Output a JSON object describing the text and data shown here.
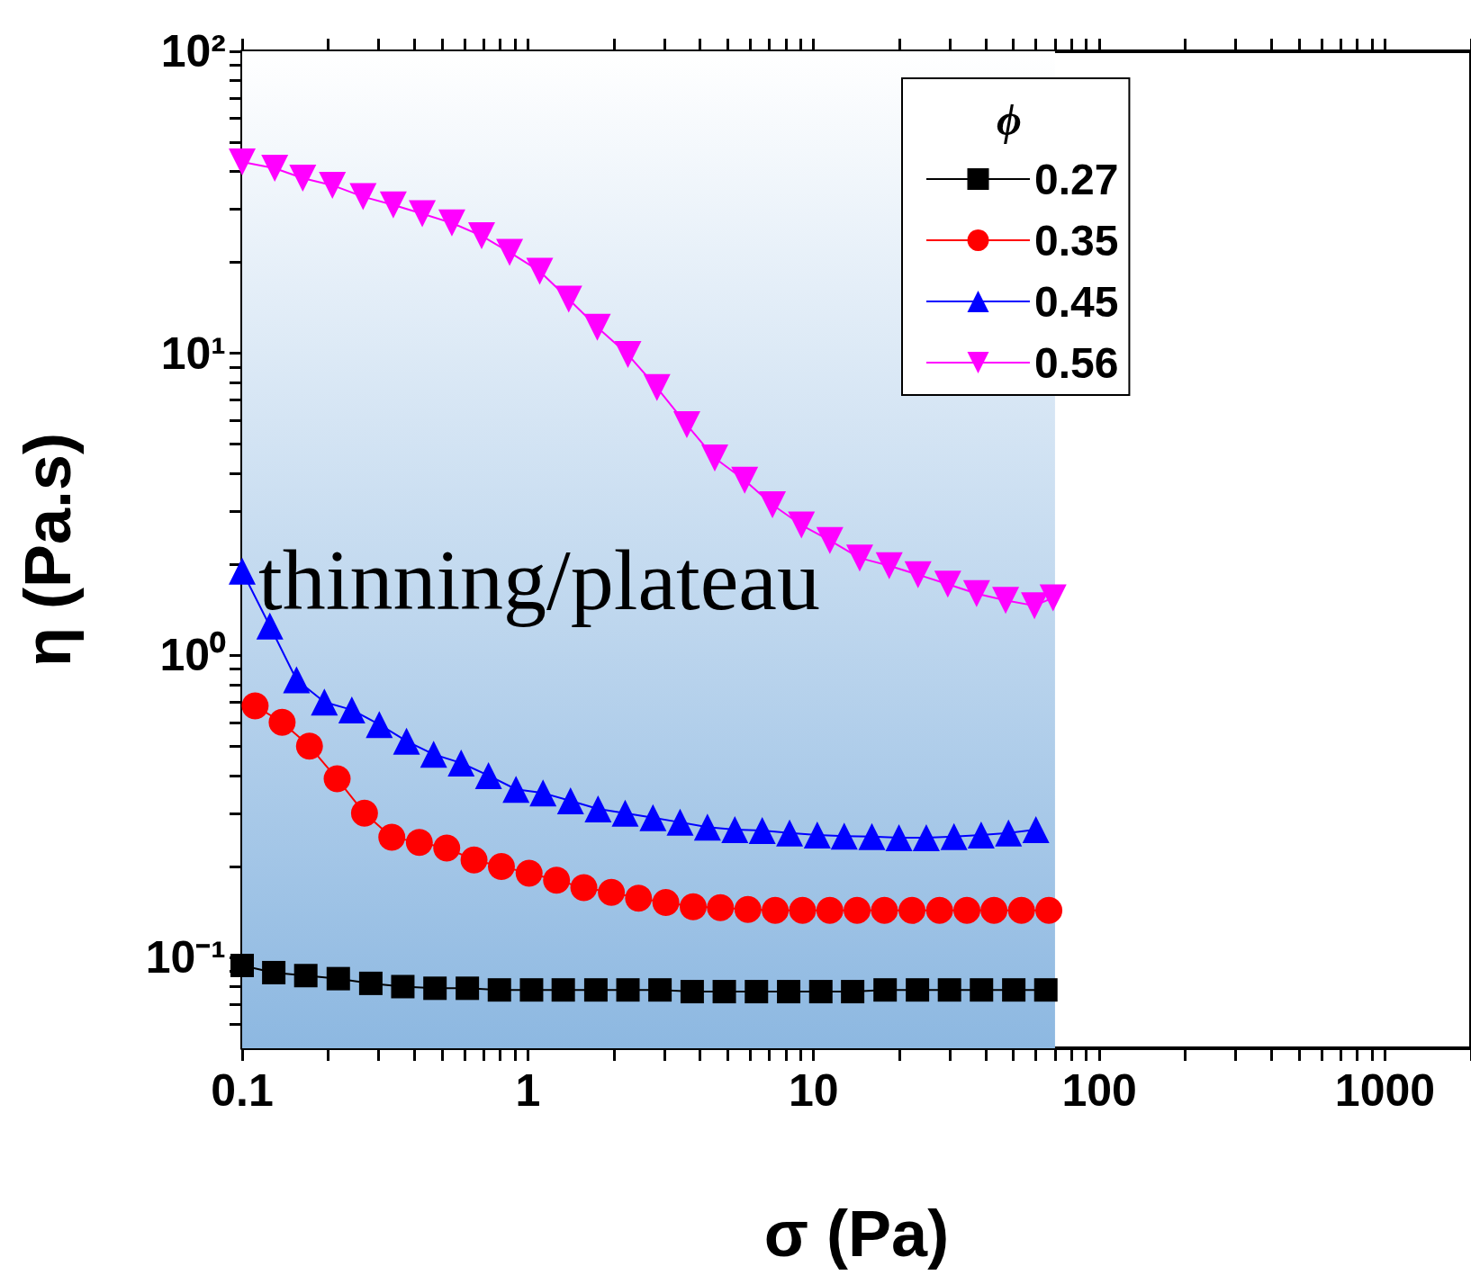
{
  "chart_data": {
    "type": "line",
    "xlabel": "σ (Pa)",
    "ylabel": "η (Pa.s)",
    "legend_title": "ϕ",
    "legend": "top right",
    "log": "xy",
    "grid": false,
    "line_style": "solid",
    "xlim": [
      0.1,
      2000
    ],
    "ylim": [
      0.05,
      100
    ],
    "xticks": [
      0.1,
      {
        "value": 0.2,
        "label": null
      },
      {
        "value": 0.3,
        "label": null
      },
      {
        "value": 0.4,
        "label": null
      },
      {
        "value": 0.5,
        "label": null
      },
      {
        "value": 0.6,
        "label": null
      },
      {
        "value": 0.7,
        "label": null
      },
      {
        "value": 0.8,
        "label": null
      },
      {
        "value": 0.9,
        "label": null
      },
      1,
      {
        "value": 2,
        "label": null
      },
      {
        "value": 3,
        "label": null
      },
      {
        "value": 4,
        "label": null
      },
      {
        "value": 5,
        "label": null
      },
      {
        "value": 6,
        "label": null
      },
      {
        "value": 7,
        "label": null
      },
      {
        "value": 8,
        "label": null
      },
      {
        "value": 9,
        "label": null
      },
      10,
      {
        "value": 20,
        "label": null
      },
      {
        "value": 30,
        "label": null
      },
      {
        "value": 40,
        "label": null
      },
      {
        "value": 50,
        "label": null
      },
      {
        "value": 60,
        "label": null
      },
      {
        "value": 70,
        "label": null
      },
      {
        "value": 80,
        "label": null
      },
      {
        "value": 90,
        "label": null
      },
      100,
      {
        "value": 200,
        "label": null
      },
      {
        "value": 300,
        "label": null
      },
      {
        "value": 400,
        "label": null
      },
      {
        "value": 500,
        "label": null
      },
      {
        "value": 600,
        "label": null
      },
      {
        "value": 700,
        "label": null
      },
      {
        "value": 800,
        "label": null
      },
      {
        "value": 900,
        "label": null
      },
      1000,
      {
        "value": 2000,
        "label": null
      }
    ],
    "yticks": [
      {
        "value": 0.06,
        "label": null
      },
      {
        "value": 0.07,
        "label": null
      },
      {
        "value": 0.08,
        "label": null
      },
      {
        "value": 0.09,
        "label": null
      },
      {
        "value": 0.1,
        "label": "10⁻¹"
      },
      {
        "value": 0.2,
        "label": null
      },
      {
        "value": 0.3,
        "label": null
      },
      {
        "value": 0.4,
        "label": null
      },
      {
        "value": 0.5,
        "label": null
      },
      {
        "value": 0.6,
        "label": null
      },
      {
        "value": 0.7,
        "label": null
      },
      {
        "value": 0.8,
        "label": null
      },
      {
        "value": 0.9,
        "label": null
      },
      {
        "value": 1,
        "label": "10⁰"
      },
      {
        "value": 2,
        "label": null
      },
      {
        "value": 3,
        "label": null
      },
      {
        "value": 4,
        "label": null
      },
      {
        "value": 5,
        "label": null
      },
      {
        "value": 6,
        "label": null
      },
      {
        "value": 7,
        "label": null
      },
      {
        "value": 8,
        "label": null
      },
      {
        "value": 9,
        "label": null
      },
      {
        "value": 10,
        "label": "10¹"
      },
      {
        "value": 20,
        "label": null
      },
      {
        "value": 30,
        "label": null
      },
      {
        "value": 40,
        "label": null
      },
      {
        "value": 50,
        "label": null
      },
      {
        "value": 60,
        "label": null
      },
      {
        "value": 70,
        "label": null
      },
      {
        "value": 80,
        "label": null
      },
      {
        "value": 90,
        "label": null
      },
      {
        "value": 100,
        "label": "10²"
      }
    ],
    "bands": [
      {
        "axis": "x",
        "from": 0.1,
        "to": 70,
        "label": "thinning/plateau",
        "color": "#8db8e1"
      }
    ],
    "series": [
      {
        "name": "0.27",
        "color": "#000000",
        "marker": "square",
        "x": [
          0.1,
          0.129,
          0.167,
          0.217,
          0.282,
          0.365,
          0.473,
          0.614,
          0.795,
          1.03,
          1.33,
          1.73,
          2.24,
          2.9,
          3.76,
          4.87,
          6.31,
          8.18,
          10.6,
          13.7,
          17.8,
          23.1,
          29.9,
          38.7,
          50.2,
          65
        ],
        "values": [
          0.094,
          0.089,
          0.087,
          0.085,
          0.082,
          0.08,
          0.079,
          0.079,
          0.078,
          0.078,
          0.078,
          0.078,
          0.078,
          0.078,
          0.077,
          0.077,
          0.077,
          0.077,
          0.077,
          0.077,
          0.078,
          0.078,
          0.078,
          0.078,
          0.078,
          0.078
        ]
      },
      {
        "name": "0.35",
        "color": "#ff0000",
        "marker": "circle",
        "x": [
          0.111,
          0.138,
          0.172,
          0.215,
          0.268,
          0.334,
          0.417,
          0.52,
          0.648,
          0.808,
          1.01,
          1.26,
          1.57,
          1.96,
          2.44,
          3.04,
          3.79,
          4.72,
          5.89,
          7.34,
          9.15,
          11.4,
          14.2,
          17.7,
          22.1,
          27.6,
          34.4,
          42.8,
          53.4,
          66.6
        ],
        "values": [
          0.68,
          0.6,
          0.5,
          0.39,
          0.3,
          0.25,
          0.24,
          0.23,
          0.21,
          0.2,
          0.19,
          0.18,
          0.17,
          0.164,
          0.157,
          0.152,
          0.147,
          0.146,
          0.144,
          0.143,
          0.143,
          0.143,
          0.143,
          0.143,
          0.143,
          0.143,
          0.143,
          0.143,
          0.143,
          0.143
        ]
      },
      {
        "name": "0.45",
        "color": "#0000ff",
        "marker": "triangle",
        "x": [
          0.1,
          0.125,
          0.155,
          0.194,
          0.242,
          0.302,
          0.376,
          0.468,
          0.584,
          0.728,
          0.909,
          1.13,
          1.41,
          1.76,
          2.19,
          2.74,
          3.41,
          4.25,
          5.3,
          6.61,
          8.24,
          10.3,
          12.8,
          16,
          19.9,
          24.8,
          31,
          38.6,
          48.1,
          60
        ],
        "values": [
          1.9,
          1.25,
          0.83,
          0.7,
          0.66,
          0.59,
          0.52,
          0.47,
          0.44,
          0.4,
          0.36,
          0.35,
          0.33,
          0.31,
          0.3,
          0.29,
          0.28,
          0.27,
          0.265,
          0.263,
          0.258,
          0.254,
          0.252,
          0.251,
          0.249,
          0.249,
          0.251,
          0.254,
          0.258,
          0.265
        ]
      },
      {
        "name": "0.56",
        "color": "#ff00ff",
        "marker": "triangle-down",
        "x": [
          0.1,
          0.13,
          0.163,
          0.207,
          0.265,
          0.338,
          0.427,
          0.542,
          0.689,
          0.863,
          1.1,
          1.39,
          1.75,
          2.24,
          2.83,
          3.6,
          4.51,
          5.74,
          7.18,
          9.07,
          11.4,
          14.5,
          18.4,
          23.2,
          29.5,
          37.2,
          47,
          59.3,
          68.9
        ],
        "values": [
          43,
          41,
          38,
          36,
          33,
          31,
          29,
          27,
          24.5,
          21.6,
          18.7,
          15.1,
          12.2,
          9.9,
          7.7,
          5.8,
          4.5,
          3.8,
          3.15,
          2.7,
          2.4,
          2.1,
          1.98,
          1.85,
          1.72,
          1.6,
          1.52,
          1.46,
          1.55
        ]
      }
    ]
  }
}
